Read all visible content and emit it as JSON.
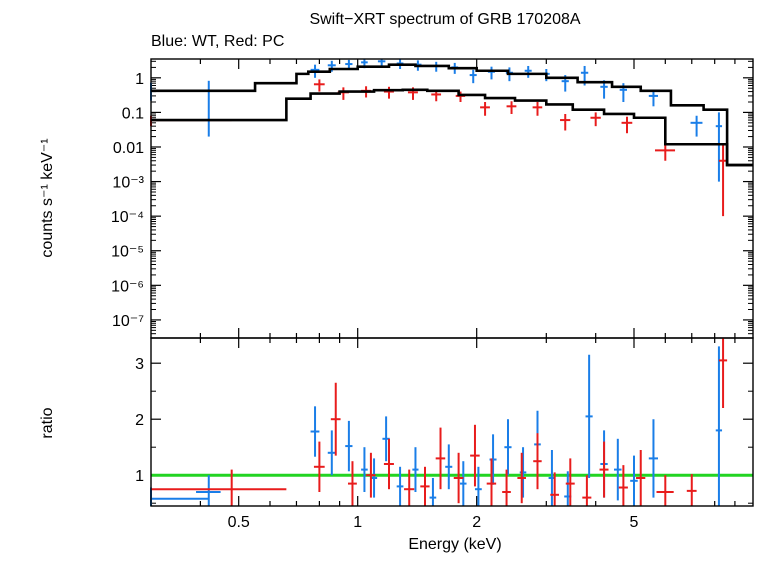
{
  "chart_data": [
    {
      "panel": "spectrum",
      "type": "scatter",
      "title": "Swift−XRT spectrum of GRB 170208A",
      "subtitle": "Blue: WT, Red: PC",
      "xlabel": "",
      "ylabel": "counts s⁻¹ keV⁻¹",
      "xscale": "log",
      "yscale": "log",
      "xlim": [
        0.3,
        10.0
      ],
      "ylim": [
        3e-08,
        3.5
      ],
      "yticks": [
        {
          "v": 1,
          "label": "1"
        },
        {
          "v": 0.1,
          "label": "0.1"
        },
        {
          "v": 0.01,
          "label": "0.01"
        },
        {
          "v": 0.001,
          "label": "10⁻³"
        },
        {
          "v": 0.0001,
          "label": "10⁻⁴"
        },
        {
          "v": 1e-05,
          "label": "10⁻⁵"
        },
        {
          "v": 1e-06,
          "label": "10⁻⁶"
        },
        {
          "v": 1e-07,
          "label": "10⁻⁷"
        }
      ],
      "series": [
        {
          "color": "#1a7ee8",
          "points": [
            [
              0.3,
              0.42,
              0.24,
              0.2,
              0.3
            ],
            [
              0.42,
              0.42,
              0.06,
              0.4,
              0.4
            ],
            [
              0.78,
              1.7,
              0.04,
              0.7,
              0.7
            ],
            [
              0.86,
              2.3,
              0.04,
              0.8,
              0.8
            ],
            [
              0.95,
              2.5,
              0.04,
              0.8,
              0.8
            ],
            [
              1.04,
              2.8,
              0.04,
              0.9,
              0.9
            ],
            [
              1.15,
              3.0,
              0.05,
              0.9,
              0.9
            ],
            [
              1.28,
              2.6,
              0.05,
              0.8,
              0.8
            ],
            [
              1.42,
              2.4,
              0.06,
              0.8,
              0.8
            ],
            [
              1.58,
              2.2,
              0.06,
              0.7,
              0.7
            ],
            [
              1.76,
              2.0,
              0.07,
              0.7,
              0.7
            ],
            [
              1.96,
              1.2,
              0.08,
              0.5,
              0.5
            ],
            [
              2.18,
              1.5,
              0.09,
              0.6,
              0.6
            ],
            [
              2.42,
              1.4,
              0.1,
              0.6,
              0.6
            ],
            [
              2.7,
              1.6,
              0.11,
              0.6,
              0.6
            ],
            [
              3.0,
              1.3,
              0.12,
              0.5,
              0.5
            ],
            [
              3.35,
              0.8,
              0.14,
              0.4,
              0.4
            ],
            [
              3.75,
              1.4,
              0.16,
              0.8,
              0.8
            ],
            [
              4.2,
              0.55,
              0.18,
              0.3,
              0.3
            ],
            [
              4.7,
              0.45,
              0.2,
              0.25,
              0.25
            ],
            [
              5.6,
              0.3,
              0.3,
              0.15,
              0.15
            ],
            [
              7.2,
              0.05,
              0.5,
              0.03,
              0.03
            ],
            [
              8.2,
              0.04,
              0.3,
              0.039,
              0.06
            ]
          ]
        },
        {
          "color": "#e81c1c",
          "points": [
            [
              0.3,
              0.06,
              0.36,
              0.02,
              0.02
            ],
            [
              0.8,
              0.65,
              0.05,
              0.25,
              0.25
            ],
            [
              0.92,
              0.38,
              0.06,
              0.15,
              0.15
            ],
            [
              1.05,
              0.42,
              0.06,
              0.15,
              0.15
            ],
            [
              1.2,
              0.4,
              0.07,
              0.15,
              0.15
            ],
            [
              1.38,
              0.38,
              0.08,
              0.15,
              0.15
            ],
            [
              1.58,
              0.33,
              0.09,
              0.12,
              0.12
            ],
            [
              1.82,
              0.3,
              0.1,
              0.1,
              0.1
            ],
            [
              2.1,
              0.14,
              0.12,
              0.06,
              0.06
            ],
            [
              2.45,
              0.15,
              0.14,
              0.06,
              0.06
            ],
            [
              2.85,
              0.14,
              0.16,
              0.06,
              0.06
            ],
            [
              3.35,
              0.06,
              0.2,
              0.03,
              0.03
            ],
            [
              4.0,
              0.07,
              0.24,
              0.03,
              0.03
            ],
            [
              4.8,
              0.05,
              0.3,
              0.025,
              0.025
            ],
            [
              6.0,
              0.008,
              0.7,
              0.004,
              0.004
            ],
            [
              8.4,
              0.004,
              0.4,
              0.0039,
              0.008
            ]
          ]
        }
      ],
      "models": [
        {
          "color": "#000000",
          "steps": [
            [
              0.3,
              0.42
            ],
            [
              0.55,
              0.7
            ],
            [
              0.7,
              1.3
            ],
            [
              0.75,
              1.5
            ],
            [
              0.85,
              1.8
            ],
            [
              1.0,
              2.1
            ],
            [
              1.2,
              2.4
            ],
            [
              1.4,
              2.2
            ],
            [
              1.7,
              1.9
            ],
            [
              2.0,
              1.6
            ],
            [
              2.4,
              1.3
            ],
            [
              3.0,
              1.0
            ],
            [
              3.6,
              0.75
            ],
            [
              4.4,
              0.55
            ],
            [
              5.2,
              0.42
            ],
            [
              6.2,
              0.16
            ],
            [
              7.5,
              0.12
            ],
            [
              8.6,
              0.003
            ],
            [
              10.0,
              0.003
            ]
          ]
        },
        {
          "color": "#000000",
          "steps": [
            [
              0.3,
              0.06
            ],
            [
              0.66,
              0.25
            ],
            [
              0.76,
              0.35
            ],
            [
              0.9,
              0.4
            ],
            [
              1.1,
              0.44
            ],
            [
              1.3,
              0.45
            ],
            [
              1.5,
              0.42
            ],
            [
              1.8,
              0.32
            ],
            [
              2.1,
              0.26
            ],
            [
              2.5,
              0.22
            ],
            [
              3.0,
              0.17
            ],
            [
              3.5,
              0.12
            ],
            [
              4.2,
              0.09
            ],
            [
              5.0,
              0.07
            ],
            [
              6.0,
              0.012
            ],
            [
              8.6,
              0.003
            ],
            [
              10.0,
              0.003
            ]
          ]
        }
      ]
    },
    {
      "panel": "ratio",
      "type": "scatter",
      "xlabel": "Energy (keV)",
      "ylabel": "ratio",
      "xscale": "log",
      "xlim": [
        0.3,
        10.0
      ],
      "ylim": [
        0.45,
        3.45
      ],
      "xticks": [
        {
          "v": 0.5,
          "label": "0.5"
        },
        {
          "v": 1,
          "label": "1"
        },
        {
          "v": 2,
          "label": "2"
        },
        {
          "v": 5,
          "label": "5"
        }
      ],
      "yticks": [
        {
          "v": 1,
          "label": "1"
        },
        {
          "v": 2,
          "label": "2"
        },
        {
          "v": 3,
          "label": "3"
        }
      ],
      "reference_line": {
        "y": 1,
        "color": "#22d422"
      },
      "series": [
        {
          "color": "#1a7ee8",
          "points": [
            [
              0.3,
              0.58,
              0.24,
              0.2
            ],
            [
              0.42,
              0.7,
              0.06,
              0.3
            ],
            [
              0.78,
              1.78,
              0.04,
              0.45
            ],
            [
              0.86,
              1.4,
              0.04,
              0.4
            ],
            [
              0.95,
              1.52,
              0.04,
              0.45
            ],
            [
              1.04,
              1.1,
              0.04,
              0.4
            ],
            [
              1.1,
              0.95,
              0.04,
              0.35
            ],
            [
              1.18,
              1.65,
              0.05,
              0.4
            ],
            [
              1.28,
              0.8,
              0.05,
              0.35
            ],
            [
              1.4,
              1.1,
              0.05,
              0.4
            ],
            [
              1.55,
              0.6,
              0.06,
              0.35
            ],
            [
              1.7,
              1.15,
              0.07,
              0.4
            ],
            [
              1.85,
              0.85,
              0.07,
              0.4
            ],
            [
              2.02,
              0.75,
              0.08,
              0.4
            ],
            [
              2.2,
              1.28,
              0.09,
              0.45
            ],
            [
              2.4,
              1.5,
              0.1,
              0.5
            ],
            [
              2.62,
              1.05,
              0.1,
              0.45
            ],
            [
              2.85,
              1.55,
              0.11,
              0.6
            ],
            [
              3.1,
              0.95,
              0.12,
              0.5
            ],
            [
              3.4,
              0.62,
              0.14,
              0.45
            ],
            [
              3.85,
              2.05,
              0.16,
              1.1
            ],
            [
              4.2,
              1.2,
              0.18,
              0.6
            ],
            [
              4.55,
              1.1,
              0.2,
              0.55
            ],
            [
              5.0,
              0.9,
              0.22,
              0.45
            ],
            [
              5.6,
              1.3,
              0.3,
              0.7
            ],
            [
              8.2,
              1.8,
              0.3,
              1.5
            ]
          ]
        },
        {
          "color": "#e81c1c",
          "points": [
            [
              0.48,
              0.75,
              0.36,
              0.35
            ],
            [
              0.8,
              1.15,
              0.05,
              0.45
            ],
            [
              0.88,
              2.0,
              0.05,
              0.65
            ],
            [
              0.97,
              0.85,
              0.05,
              0.4
            ],
            [
              1.08,
              1.0,
              0.06,
              0.4
            ],
            [
              1.2,
              1.2,
              0.07,
              0.45
            ],
            [
              1.35,
              0.75,
              0.08,
              0.35
            ],
            [
              1.48,
              0.8,
              0.08,
              0.35
            ],
            [
              1.62,
              1.3,
              0.09,
              0.55
            ],
            [
              1.8,
              0.95,
              0.1,
              0.45
            ],
            [
              1.98,
              1.35,
              0.11,
              0.55
            ],
            [
              2.18,
              0.85,
              0.12,
              0.45
            ],
            [
              2.38,
              0.7,
              0.12,
              0.4
            ],
            [
              2.6,
              0.95,
              0.13,
              0.45
            ],
            [
              2.85,
              1.25,
              0.14,
              0.5
            ],
            [
              3.15,
              0.65,
              0.16,
              0.4
            ],
            [
              3.45,
              0.85,
              0.18,
              0.45
            ],
            [
              3.8,
              0.6,
              0.2,
              0.4
            ],
            [
              4.2,
              1.1,
              0.22,
              0.5
            ],
            [
              4.7,
              0.78,
              0.25,
              0.4
            ],
            [
              5.2,
              0.95,
              0.28,
              0.5
            ],
            [
              6.0,
              0.7,
              0.6,
              0.3
            ],
            [
              7.0,
              0.72,
              0.4,
              0.3
            ],
            [
              8.4,
              3.05,
              0.4,
              0.85
            ]
          ]
        }
      ]
    }
  ]
}
